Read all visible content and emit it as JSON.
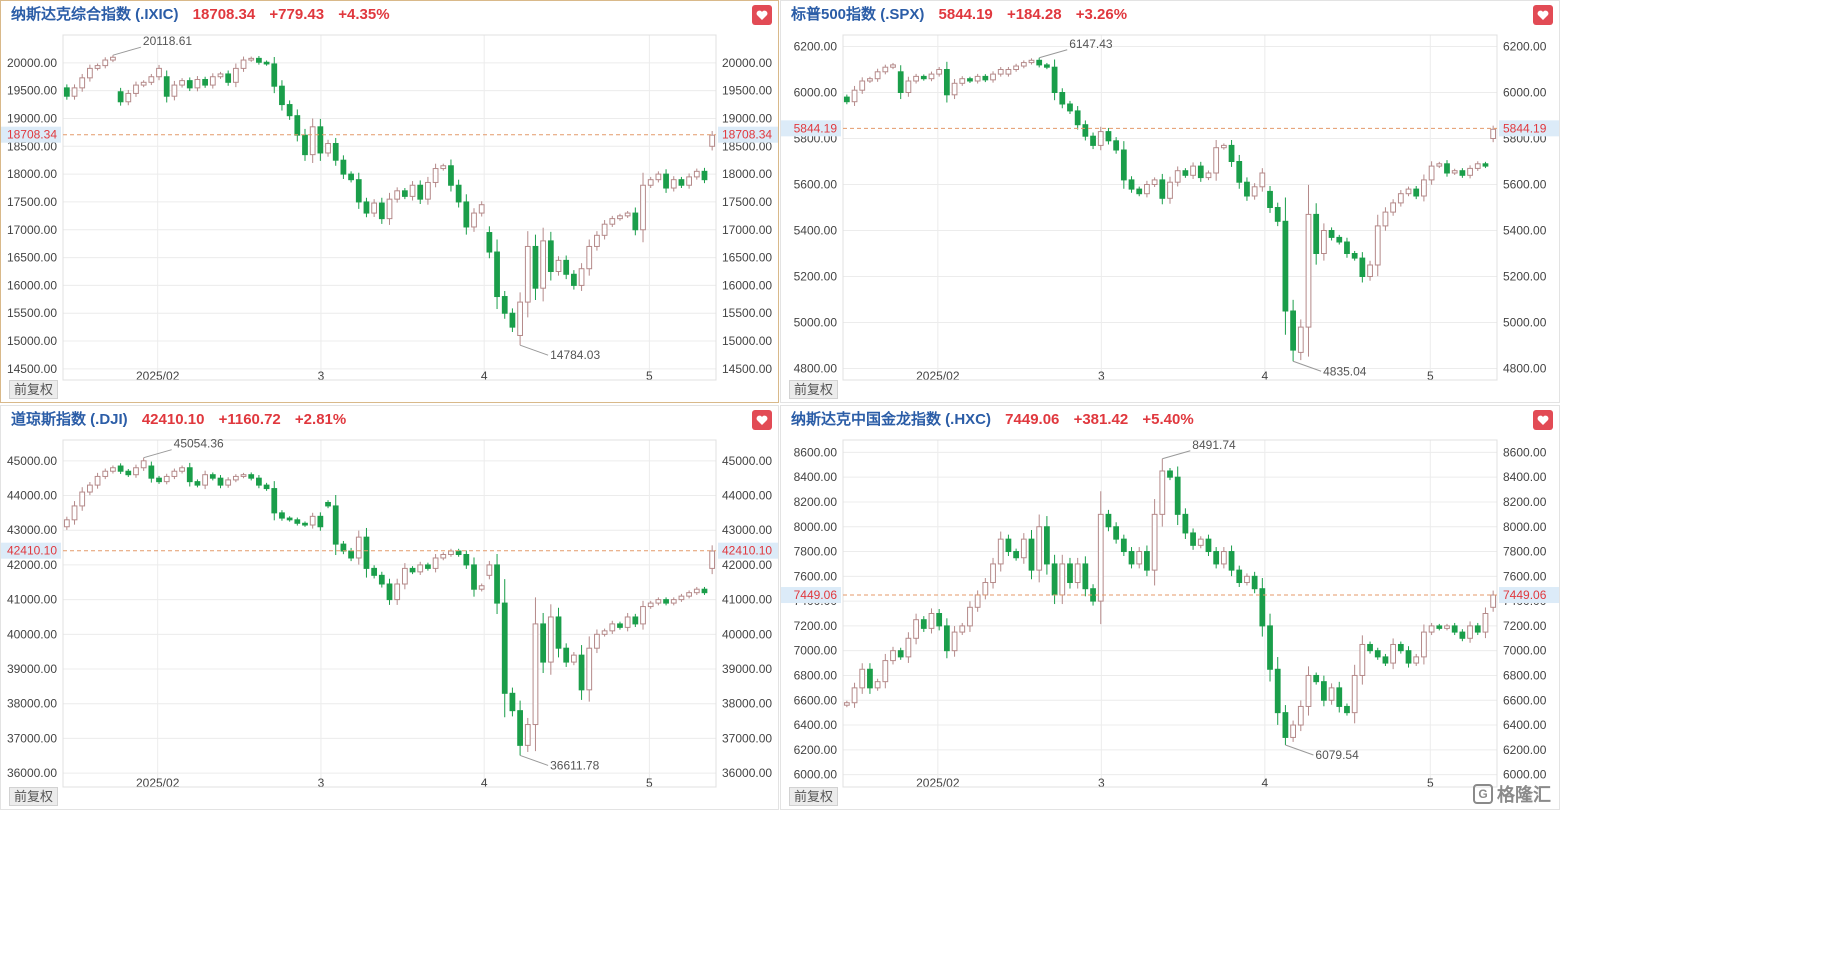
{
  "colors": {
    "up": "#b58a8a",
    "down": "#1a9e4a",
    "last_line": "#e49a6a",
    "grid": "#ececec",
    "accent": "#e0383e"
  },
  "footer": {
    "adjust_label": "前复权",
    "logo_text": "格隆汇",
    "logo_mark": "G"
  },
  "panels": [
    {
      "id": "ixic",
      "name": "纳斯达克综合指数 (.IXIC)",
      "last": "18708.34",
      "change": "+779.43",
      "pct": "+4.35%",
      "heart_icon": "heart-icon"
    },
    {
      "id": "spx",
      "name": "标普500指数 (.SPX)",
      "last": "5844.19",
      "change": "+184.28",
      "pct": "+3.26%",
      "heart_icon": "heart-icon"
    },
    {
      "id": "dji",
      "name": "道琼斯指数 (.DJI)",
      "last": "42410.10",
      "change": "+1160.72",
      "pct": "+2.81%",
      "heart_icon": "heart-icon"
    },
    {
      "id": "hxc",
      "name": "纳斯达克中国金龙指数 (.HXC)",
      "last": "7449.06",
      "change": "+381.42",
      "pct": "+5.40%",
      "heart_icon": "heart-icon"
    }
  ],
  "chart_data": [
    {
      "type": "candlestick",
      "id": "ixic",
      "x_ticks": [
        "2025/02",
        "3",
        "4",
        "5"
      ],
      "y_ticks": [
        "20000.00",
        "19500.00",
        "19000.00",
        "18500.00",
        "18000.00",
        "17500.00",
        "17000.00",
        "16500.00",
        "16000.00",
        "15500.00",
        "15000.00",
        "14500.00"
      ],
      "ylim": [
        14300,
        20500
      ],
      "last_price": "18708.34",
      "annotations": [
        {
          "label": "20118.61",
          "type": "high"
        },
        {
          "label": "14784.03",
          "type": "low"
        }
      ],
      "close": [
        19400,
        19550,
        19730,
        19900,
        19950,
        20050,
        20100,
        19300,
        19450,
        19600,
        19650,
        19750,
        19900,
        19400,
        19600,
        19680,
        19550,
        19700,
        19600,
        19750,
        19800,
        19650,
        19900,
        20050,
        20080,
        20010,
        19980,
        19580,
        19250,
        19050,
        18700,
        18350,
        18850,
        18380,
        18550,
        18250,
        18000,
        17900,
        17500,
        17300,
        17480,
        17200,
        17550,
        17700,
        17600,
        17800,
        17550,
        17850,
        18100,
        18150,
        17800,
        17500,
        17050,
        17300,
        17450,
        16600,
        15800,
        15500,
        15250,
        15700,
        16700,
        15950,
        16800,
        16250,
        16450,
        16200,
        16000,
        16300,
        16700,
        16900,
        17100,
        17200,
        17250,
        17300,
        17000,
        17800,
        17900,
        18000,
        17750,
        17900,
        17800,
        17950,
        18050,
        17900,
        18700
      ],
      "open": [
        19550,
        19400,
        19550,
        19730,
        19900,
        19950,
        20050,
        19480,
        19300,
        19450,
        19600,
        19650,
        19750,
        19750,
        19400,
        19600,
        19680,
        19550,
        19700,
        19600,
        19750,
        19800,
        19650,
        19900,
        20050,
        20080,
        20010,
        19980,
        19580,
        19250,
        19050,
        18700,
        18350,
        18850,
        18380,
        18550,
        18250,
        18000,
        17900,
        17500,
        17300,
        17480,
        17200,
        17550,
        17700,
        17600,
        17800,
        17550,
        17850,
        18100,
        18150,
        17800,
        17500,
        17050,
        17300,
        16950,
        16600,
        15800,
        15500,
        15100,
        15700,
        16700,
        15950,
        16800,
        16250,
        16450,
        16200,
        16000,
        16300,
        16700,
        16900,
        17100,
        17200,
        17250,
        17300,
        17000,
        17800,
        17900,
        18000,
        17750,
        17900,
        17800,
        17950,
        18050,
        18500
      ]
    },
    {
      "type": "candlestick",
      "id": "spx",
      "x_ticks": [
        "2025/02",
        "3",
        "4",
        "5"
      ],
      "y_ticks": [
        "6200.00",
        "6000.00",
        "5800.00",
        "5600.00",
        "5400.00",
        "5200.00",
        "5000.00",
        "4800.00"
      ],
      "ylim": [
        4750,
        6250
      ],
      "last_price": "5844.19",
      "annotations": [
        {
          "label": "6147.43",
          "type": "high"
        },
        {
          "label": "4835.04",
          "type": "low"
        }
      ],
      "close": [
        5960,
        6010,
        6050,
        6060,
        6090,
        6110,
        6120,
        6000,
        6050,
        6070,
        6060,
        6080,
        6100,
        5990,
        6040,
        6060,
        6050,
        6070,
        6055,
        6080,
        6100,
        6100,
        6115,
        6130,
        6140,
        6120,
        6110,
        6000,
        5950,
        5920,
        5860,
        5810,
        5770,
        5830,
        5790,
        5750,
        5620,
        5580,
        5560,
        5600,
        5620,
        5540,
        5610,
        5660,
        5640,
        5680,
        5630,
        5650,
        5760,
        5770,
        5700,
        5610,
        5550,
        5590,
        5650,
        5500,
        5440,
        5050,
        4880,
        4980,
        5470,
        5300,
        5400,
        5370,
        5350,
        5300,
        5280,
        5200,
        5250,
        5420,
        5480,
        5520,
        5560,
        5580,
        5550,
        5620,
        5680,
        5690,
        5650,
        5660,
        5640,
        5670,
        5690,
        5680,
        5840
      ],
      "open": [
        5980,
        5960,
        6010,
        6050,
        6060,
        6090,
        6110,
        6090,
        6000,
        6050,
        6070,
        6060,
        6080,
        6100,
        5990,
        6040,
        6060,
        6050,
        6070,
        6055,
        6080,
        6080,
        6100,
        6115,
        6130,
        6140,
        6120,
        6110,
        6000,
        5950,
        5920,
        5860,
        5810,
        5770,
        5830,
        5790,
        5750,
        5620,
        5580,
        5560,
        5600,
        5620,
        5540,
        5610,
        5660,
        5640,
        5680,
        5630,
        5650,
        5760,
        5770,
        5700,
        5610,
        5550,
        5590,
        5570,
        5500,
        5440,
        5050,
        4870,
        4980,
        5470,
        5300,
        5400,
        5370,
        5350,
        5300,
        5280,
        5200,
        5250,
        5420,
        5480,
        5520,
        5560,
        5580,
        5550,
        5620,
        5680,
        5690,
        5650,
        5660,
        5640,
        5670,
        5690,
        5800
      ]
    },
    {
      "type": "candlestick",
      "id": "dji",
      "x_ticks": [
        "2025/02",
        "3",
        "4",
        "5"
      ],
      "y_ticks": [
        "45000.00",
        "44000.00",
        "43000.00",
        "42000.00",
        "41000.00",
        "40000.00",
        "39000.00",
        "38000.00",
        "37000.00",
        "36000.00"
      ],
      "ylim": [
        35600,
        45600
      ],
      "last_price": "42410.10",
      "annotations": [
        {
          "label": "45054.36",
          "type": "high"
        },
        {
          "label": "36611.78",
          "type": "low"
        }
      ],
      "close": [
        43300,
        43700,
        44100,
        44300,
        44550,
        44700,
        44800,
        44700,
        44600,
        44800,
        45000,
        44500,
        44400,
        44550,
        44700,
        44800,
        44400,
        44300,
        44600,
        44500,
        44300,
        44450,
        44550,
        44600,
        44500,
        44300,
        44200,
        43500,
        43350,
        43300,
        43200,
        43150,
        43400,
        43100,
        43700,
        42600,
        42400,
        42200,
        42800,
        41900,
        41700,
        41450,
        41000,
        41450,
        41900,
        41800,
        42000,
        41900,
        42200,
        42300,
        42400,
        42300,
        42000,
        41300,
        41400,
        42000,
        40900,
        38300,
        37800,
        36800,
        37400,
        40300,
        39200,
        40500,
        39600,
        39200,
        39400,
        38400,
        39600,
        40000,
        40100,
        40300,
        40200,
        40500,
        40300,
        40800,
        40900,
        41000,
        40900,
        41000,
        41100,
        41200,
        41300,
        41200,
        42400
      ],
      "open": [
        43100,
        43300,
        43700,
        44100,
        44300,
        44550,
        44700,
        44850,
        44700,
        44600,
        44800,
        44850,
        44500,
        44400,
        44550,
        44700,
        44800,
        44400,
        44300,
        44600,
        44500,
        44300,
        44450,
        44550,
        44600,
        44500,
        44300,
        44200,
        43500,
        43350,
        43300,
        43200,
        43150,
        43400,
        43800,
        43700,
        42600,
        42400,
        42200,
        42800,
        41900,
        41700,
        41450,
        41000,
        41450,
        41900,
        41800,
        42000,
        41900,
        42200,
        42300,
        42400,
        42300,
        42000,
        41300,
        41700,
        42000,
        40900,
        38300,
        37800,
        36800,
        37400,
        40300,
        39200,
        40500,
        39600,
        39200,
        39400,
        38400,
        39600,
        40000,
        40100,
        40300,
        40200,
        40500,
        40300,
        40800,
        40900,
        41000,
        40900,
        41000,
        41100,
        41200,
        41300,
        41900
      ]
    },
    {
      "type": "candlestick",
      "id": "hxc",
      "x_ticks": [
        "2025/02",
        "3",
        "4",
        "5"
      ],
      "y_ticks": [
        "8600.00",
        "8400.00",
        "8200.00",
        "8000.00",
        "7800.00",
        "7600.00",
        "7400.00",
        "7200.00",
        "7000.00",
        "6800.00",
        "6600.00",
        "6400.00",
        "6200.00",
        "6000.00"
      ],
      "ylim": [
        5900,
        8700
      ],
      "last_price": "7449.06",
      "annotations": [
        {
          "label": "8491.74",
          "type": "high"
        },
        {
          "label": "6079.54",
          "type": "low"
        }
      ],
      "close": [
        6580,
        6700,
        6850,
        6700,
        6750,
        6920,
        7000,
        6950,
        7100,
        7250,
        7180,
        7300,
        7200,
        7000,
        7150,
        7200,
        7350,
        7450,
        7550,
        7700,
        7900,
        7800,
        7750,
        7900,
        7650,
        8000,
        7700,
        7450,
        7700,
        7550,
        7700,
        7500,
        7400,
        8100,
        8000,
        7900,
        7800,
        7700,
        7800,
        7650,
        8100,
        8450,
        8400,
        8100,
        7950,
        7850,
        7900,
        7800,
        7700,
        7800,
        7650,
        7550,
        7600,
        7500,
        7200,
        6850,
        6500,
        6300,
        6400,
        6550,
        6800,
        6750,
        6600,
        6700,
        6550,
        6500,
        6800,
        7050,
        7000,
        6950,
        6900,
        7050,
        7000,
        6900,
        6950,
        7150,
        7200,
        7180,
        7200,
        7150,
        7100,
        7200,
        7150,
        7300,
        7449
      ],
      "open": [
        6560,
        6580,
        6700,
        6850,
        6700,
        6750,
        6920,
        7000,
        6950,
        7100,
        7250,
        7180,
        7300,
        7200,
        7000,
        7150,
        7200,
        7350,
        7450,
        7550,
        7700,
        7900,
        7800,
        7750,
        7900,
        7650,
        8000,
        7700,
        7450,
        7700,
        7550,
        7700,
        7500,
        7400,
        8100,
        8000,
        7900,
        7800,
        7700,
        7800,
        7650,
        8100,
        8450,
        8400,
        8100,
        7950,
        7850,
        7900,
        7800,
        7700,
        7800,
        7650,
        7550,
        7600,
        7500,
        7200,
        6850,
        6500,
        6300,
        6400,
        6550,
        6800,
        6750,
        6600,
        6700,
        6550,
        6500,
        6800,
        7050,
        7000,
        6950,
        6900,
        7050,
        7000,
        6900,
        6950,
        7150,
        7200,
        7180,
        7200,
        7150,
        7100,
        7200,
        7150,
        7350
      ]
    }
  ]
}
